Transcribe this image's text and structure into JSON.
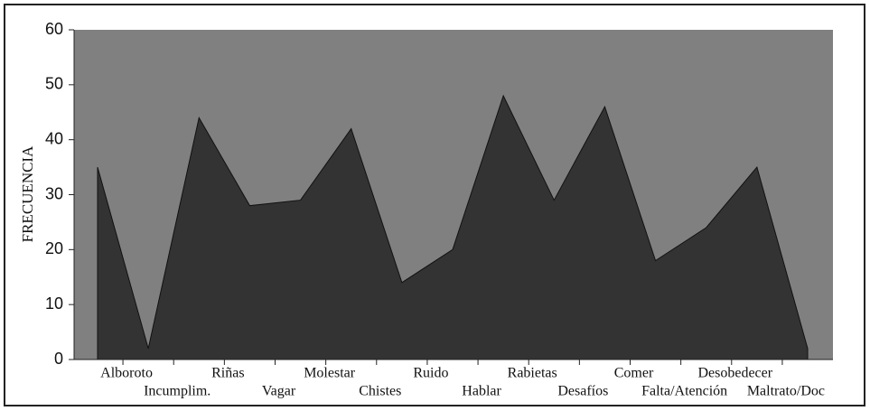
{
  "chart_data": {
    "type": "area",
    "ylabel": "FRECUENCIA",
    "categories": [
      "Alboroto",
      "Incumplim.",
      "Riñas",
      "Vagar",
      "Molestar",
      "Chistes",
      "Ruido",
      "Hablar",
      "Rabietas",
      "Desafíos",
      "Comer",
      "Falta/Atención",
      "Desobedecer",
      "Maltrato/Doc",
      null
    ],
    "values": [
      35,
      2,
      44,
      28,
      29,
      42,
      14,
      20,
      48,
      29,
      46,
      18,
      24,
      35,
      2
    ],
    "color": "#333333",
    "background": "#808080",
    "ylim": [
      0,
      60
    ],
    "yticks": [
      0,
      10,
      20,
      30,
      40,
      50,
      60
    ],
    "grid": false
  }
}
